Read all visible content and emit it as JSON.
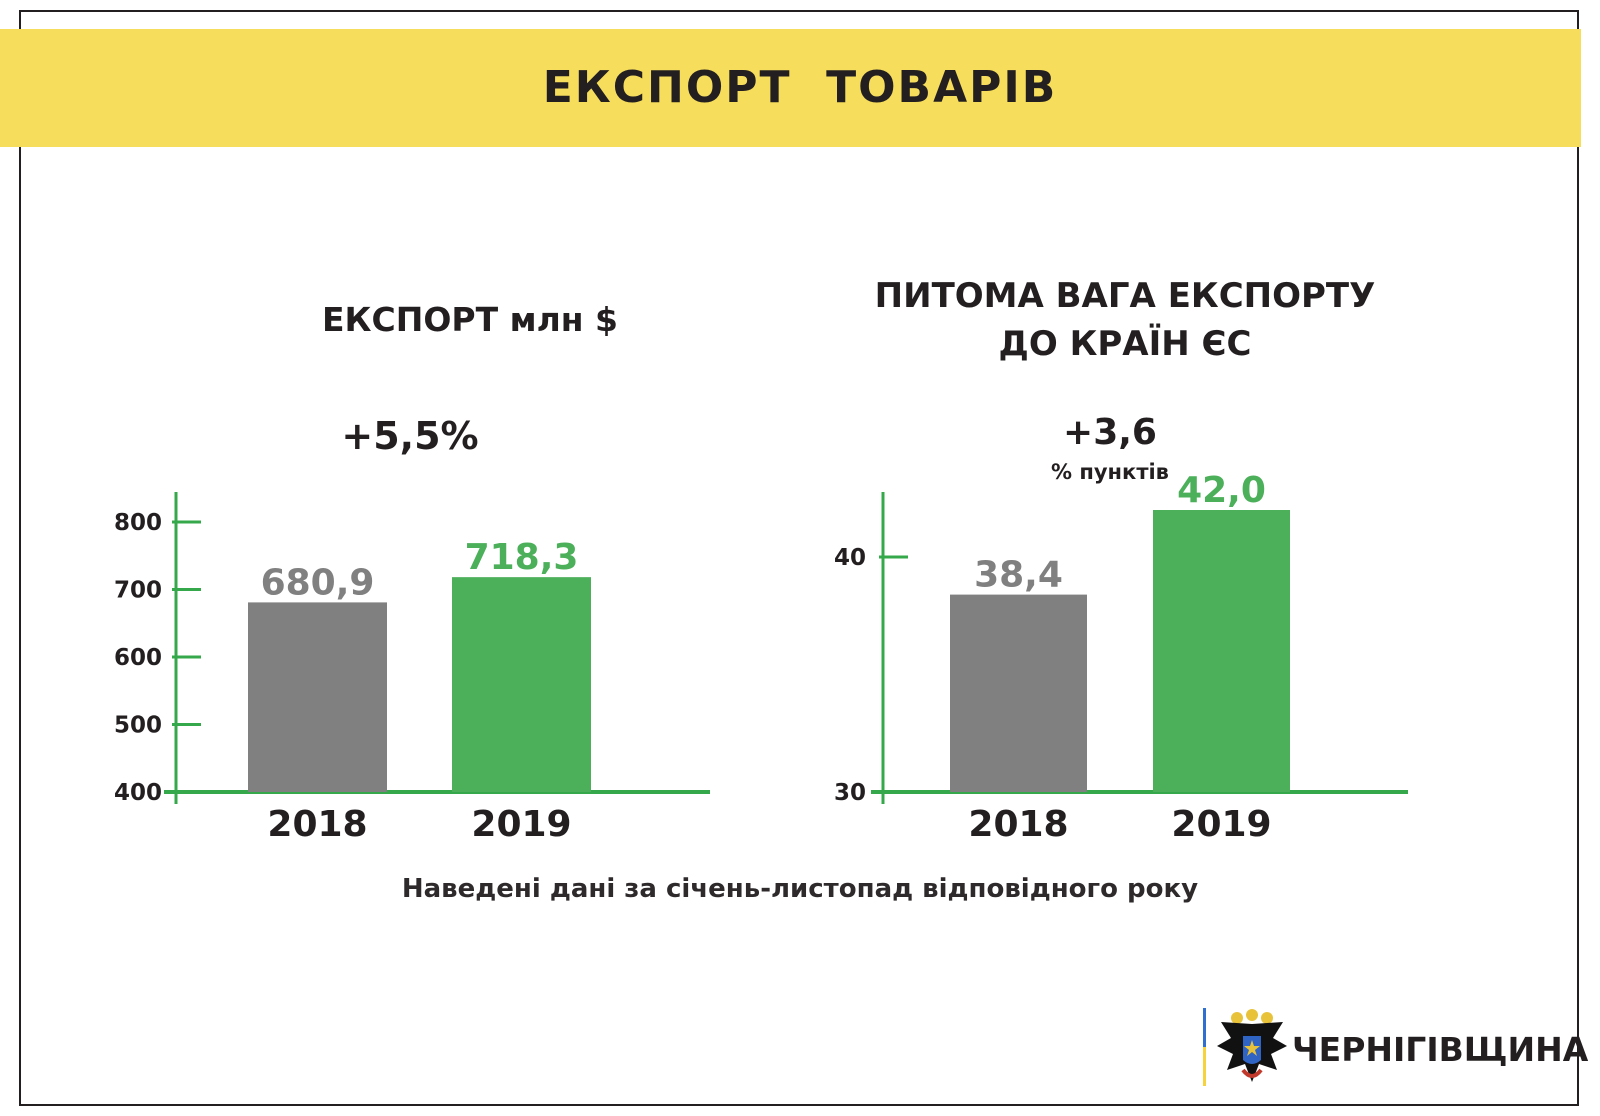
{
  "header": {
    "title": "ЕКСПОРТ  ТОВАРІВ"
  },
  "charts": {
    "left": {
      "title": "ЕКСПОРТ млн $",
      "change": "+5,5%"
    },
    "right": {
      "title_line1": "ПИТОМА ВАГА ЕКСПОРТУ",
      "title_line2": "ДО КРАЇН ЄС",
      "change": "+3,6",
      "change_unit": "% пунктів"
    }
  },
  "note": "Наведені дані за січень-листопад відповідного року",
  "logo": {
    "text": "ЧЕРНІГІВЩИНА"
  },
  "colors": {
    "banner": "#f6dd5c",
    "axis": "#34a84a",
    "bar_2018": "#808080",
    "bar_2019": "#4caf5a",
    "label_2018": "#808080",
    "label_2019": "#4caf5a"
  },
  "chart_data": [
    {
      "type": "bar",
      "title": "ЕКСПОРТ млн $",
      "categories": [
        "2018",
        "2019"
      ],
      "values": [
        680.9,
        718.3
      ],
      "value_labels": [
        "680,9",
        "718,3"
      ],
      "ylim": [
        400,
        800
      ],
      "yticks": [
        400,
        500,
        600,
        700,
        800
      ],
      "grid": false
    },
    {
      "type": "bar",
      "title": "ПИТОМА ВАГА ЕКСПОРТУ ДО КРАЇН ЄС",
      "categories": [
        "2018",
        "2019"
      ],
      "values": [
        38.4,
        42.0
      ],
      "value_labels": [
        "38,4",
        "42,0"
      ],
      "ylim": [
        30,
        40
      ],
      "yticks": [
        30,
        40
      ],
      "grid": false
    }
  ]
}
